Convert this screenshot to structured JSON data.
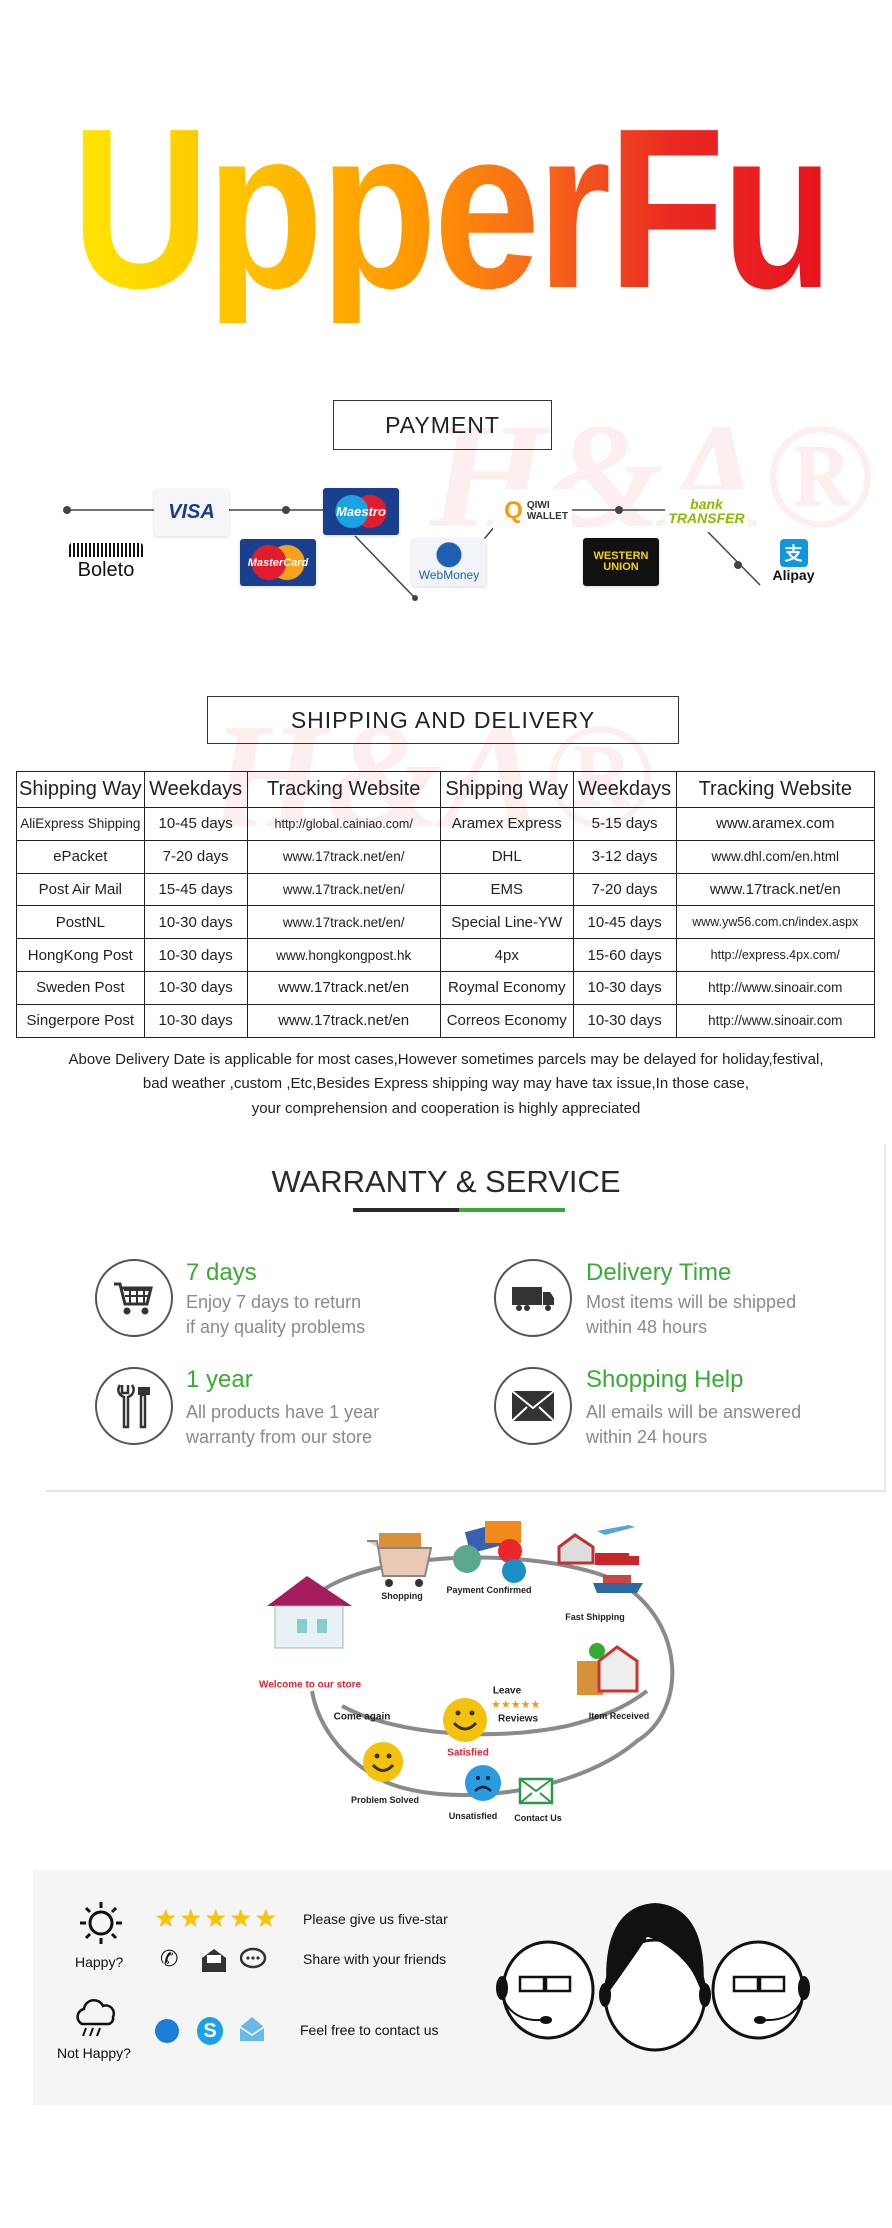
{
  "brand": {
    "logo": "UpperFu",
    "gradient": [
      "#ffe600",
      "#ff9a00",
      "#e8141e"
    ],
    "watermark": "H&A®"
  },
  "payment": {
    "title": "PAYMENT",
    "methods": [
      {
        "name": "VISA"
      },
      {
        "name": "Maestro"
      },
      {
        "name": "MasterCard"
      },
      {
        "name": "Boleto"
      },
      {
        "name": "WebMoney"
      },
      {
        "name": "QIWI WALLET"
      },
      {
        "name": "WESTERN UNION"
      },
      {
        "name": "bank TRANSFER"
      },
      {
        "name": "Alipay"
      }
    ]
  },
  "shipping": {
    "title": "SHIPPING AND DELIVERY",
    "headers": [
      "Shipping Way",
      "Weekdays",
      "Tracking Website",
      "Shipping Way",
      "Weekdays",
      "Tracking Website"
    ],
    "rows": [
      [
        "AliExpress Shipping",
        "10-45 days",
        "http://global.cainiao.com/",
        "Aramex Express",
        "5-15 days",
        "www.aramex.com"
      ],
      [
        "ePacket",
        "7-20 days",
        "www.17track.net/en/",
        "DHL",
        "3-12 days",
        "www.dhl.com/en.html"
      ],
      [
        "Post Air Mail",
        "15-45 days",
        "www.17track.net/en/",
        "EMS",
        "7-20 days",
        "www.17track.net/en"
      ],
      [
        "PostNL",
        "10-30 days",
        "www.17track.net/en/",
        "Special Line-YW",
        "10-45 days",
        "www.yw56.com.cn/index.aspx"
      ],
      [
        "HongKong Post",
        "10-30 days",
        "www.hongkongpost.hk",
        "4px",
        "15-60 days",
        "http://express.4px.com/"
      ],
      [
        "Sweden Post",
        "10-30 days",
        "www.17track.net/en",
        "Roymal Economy",
        "10-30 days",
        "http://www.sinoair.com"
      ],
      [
        "Singerpore Post",
        "10-30 days",
        "www.17track.net/en",
        "Correos Economy",
        "10-30 days",
        "http://www.sinoair.com"
      ]
    ],
    "note": [
      "Above Delivery Date is applicable for most cases,However sometimes parcels may be delayed for holiday,festival,",
      "bad weather ,custom ,Etc,Besides Express shipping way may have tax issue,In those case,",
      "your comprehension and cooperation is highly appreciated"
    ]
  },
  "warranty": {
    "title": "WARRANTY & SERVICE",
    "accent": "#3aaa35",
    "items": [
      {
        "icon": "cart-icon",
        "title": "7 days",
        "line1": "Enjoy 7 days to return",
        "line2": "if any quality problems"
      },
      {
        "icon": "truck-icon",
        "title": "Delivery Time",
        "line1": "Most items will be shipped",
        "line2": "within 48 hours"
      },
      {
        "icon": "tools-icon",
        "title": "1 year",
        "line1": "All products have 1 year",
        "line2": "warranty from our store"
      },
      {
        "icon": "envelope-icon",
        "title": "Shopping Help",
        "line1": "All emails will be answered",
        "line2": "within 24 hours"
      }
    ]
  },
  "cycle": {
    "shopping": "Shopping",
    "payment": "Payment Confirmed",
    "fast": "Fast Shipping",
    "welcome": "Welcome to our store",
    "leave": "Leave",
    "reviews": "Reviews",
    "come": "Come again",
    "received": "Item Received",
    "satisfied": "Satisfied",
    "solved": "Problem Solved",
    "unsatisfied": "Unsatisfied",
    "contact": "Contact Us"
  },
  "feedback": {
    "happy": "Happy?",
    "not_happy": "Not Happy?",
    "five_star": "Please give us five-star",
    "share": "Share with your friends",
    "contact": "Feel free to contact us",
    "rating": 5
  }
}
